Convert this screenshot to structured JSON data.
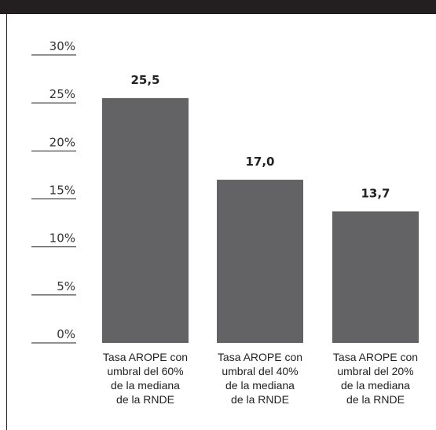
{
  "chart_data": {
    "type": "bar",
    "categories": [
      "Tasa AROPE con\numbral del 60%\nde la mediana\nde la RNDE",
      "Tasa AROPE con\numbral del 40%\nde la mediana\nde la RNDE",
      "Tasa AROPE con\numbral del 20%\nde la mediana\nde la RNDE"
    ],
    "values": [
      25.5,
      17.0,
      13.7
    ],
    "value_labels": [
      "25,5",
      "17,0",
      "13,7"
    ],
    "color": "#636366",
    "ylim": [
      0,
      30
    ],
    "yticks": [
      {
        "value": 0,
        "label": "0%"
      },
      {
        "value": 5,
        "label": "5%"
      },
      {
        "value": 10,
        "label": "10%"
      },
      {
        "value": 15,
        "label": "15%"
      },
      {
        "value": 20,
        "label": "20%"
      },
      {
        "value": 25,
        "label": "25%"
      },
      {
        "value": 30,
        "label": "30%"
      }
    ]
  }
}
